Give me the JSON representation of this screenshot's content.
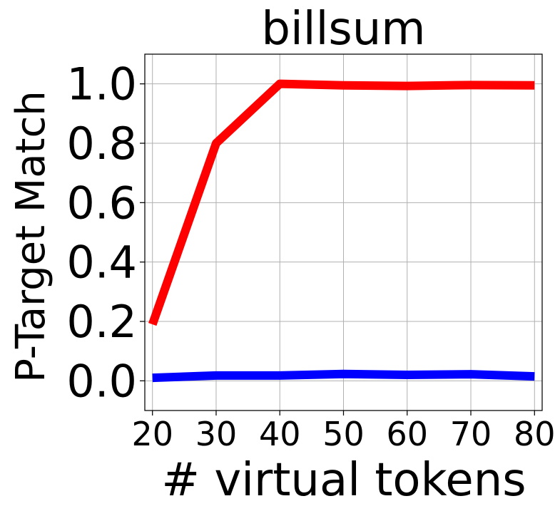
{
  "chart_data": {
    "type": "line",
    "title": "billsum",
    "xlabel": "# virtual tokens",
    "ylabel": "P-Target Match",
    "x": [
      20,
      30,
      40,
      50,
      60,
      70,
      80
    ],
    "x_tick_labels": [
      "20",
      "30",
      "40",
      "50",
      "60",
      "70",
      "80"
    ],
    "y_ticks": [
      0.0,
      0.2,
      0.4,
      0.6,
      0.8,
      1.0
    ],
    "y_tick_labels": [
      "0.0",
      "0.2",
      "0.4",
      "0.6",
      "0.8",
      "1.0"
    ],
    "xlim": [
      18.8,
      81.2
    ],
    "ylim": [
      -0.1,
      1.1
    ],
    "grid": true,
    "legend": "none",
    "series": [
      {
        "color": "#ff0000",
        "values": [
          0.19,
          0.8,
          1.0,
          0.995,
          0.993,
          0.996,
          0.995
        ]
      },
      {
        "color": "#0000ff",
        "values": [
          0.01,
          0.018,
          0.018,
          0.023,
          0.02,
          0.022,
          0.015
        ]
      }
    ]
  }
}
